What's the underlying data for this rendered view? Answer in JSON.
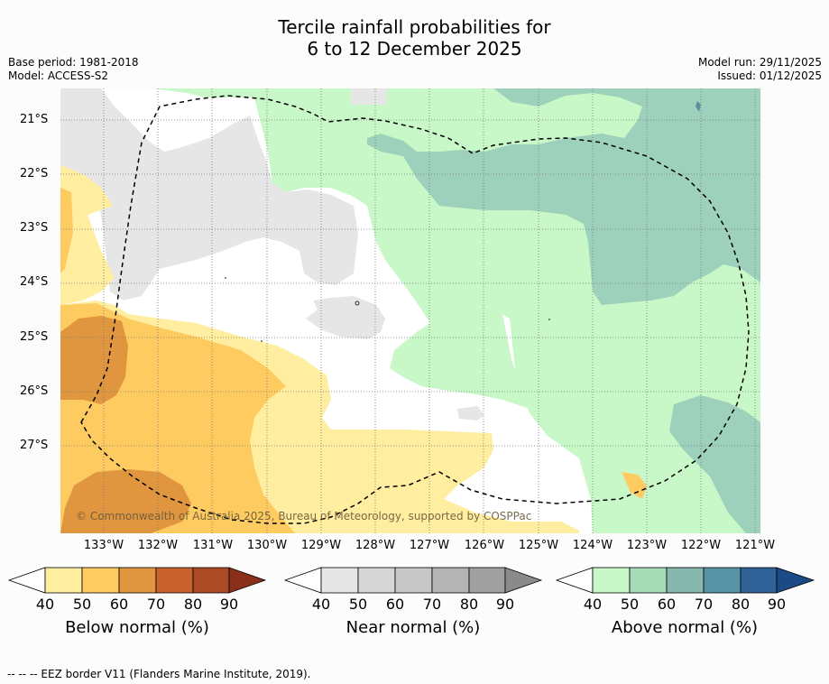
{
  "title": {
    "line1": "Tercile rainfall probabilities for",
    "line2": "6 to 12 December 2025"
  },
  "meta": {
    "base_period": "Base period: 1981-2018",
    "model": "Model: ACCESS-S2",
    "model_run": "Model run: 29/11/2025",
    "issued": "Issued: 01/12/2025"
  },
  "map": {
    "lat_labels": [
      "21°S",
      "22°S",
      "23°S",
      "24°S",
      "25°S",
      "26°S",
      "27°S"
    ],
    "lon_labels": [
      "133°W",
      "132°W",
      "131°W",
      "130°W",
      "129°W",
      "128°W",
      "127°W",
      "126°W",
      "125°W",
      "124°W",
      "123°W",
      "122°W",
      "121°W"
    ],
    "copyright": "© Commonwealth of Australia 2025, Bureau of Meteorology, supported by COSPPac"
  },
  "colorbars": [
    {
      "label": "Below normal (%)",
      "ticks": [
        "40",
        "50",
        "60",
        "70",
        "80",
        "90"
      ],
      "colors": [
        "#ffffff",
        "#ffeda0",
        "#fecb60",
        "#e0953f",
        "#c9622f",
        "#ad4a26",
        "#8b2f1d"
      ]
    },
    {
      "label": "Near normal (%)",
      "ticks": [
        "40",
        "50",
        "60",
        "70",
        "80",
        "90"
      ],
      "colors": [
        "#ffffff",
        "#e6e6e6",
        "#d6d6d6",
        "#c7c7c7",
        "#b4b4b4",
        "#a0a0a0",
        "#8a8a8a"
      ]
    },
    {
      "label": "Above normal (%)",
      "ticks": [
        "40",
        "50",
        "60",
        "70",
        "80",
        "90"
      ],
      "colors": [
        "#ffffff",
        "#c8f8c8",
        "#a5dbb7",
        "#86b8ad",
        "#5793a5",
        "#2f6297",
        "#1c4a86"
      ]
    }
  ],
  "legend": {
    "eez": "--  --  -- EEZ border V11 (Flanders Marine Institute, 2019)."
  }
}
